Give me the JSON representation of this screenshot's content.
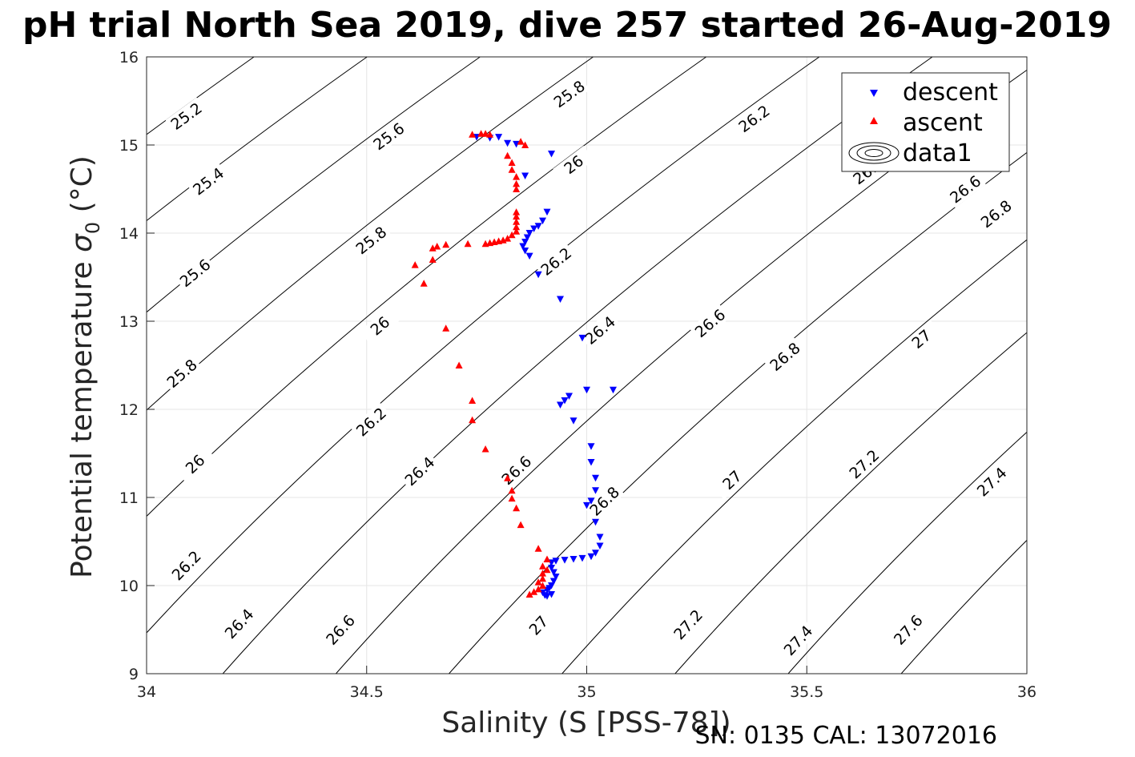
{
  "chart_data": {
    "type": "scatter",
    "title": "pH trial North Sea 2019, dive 257 started 26-Aug-2019",
    "xlabel": "Salinity (S [PSS-78])",
    "ylabel": "Potential temperature σ₀ (°C)",
    "ylabel_main": "Potential temperature ",
    "ylabel_sigma": "σ",
    "ylabel_sub": "0",
    "ylabel_unit": " (°C)",
    "xlim": [
      34,
      36
    ],
    "ylim": [
      9,
      16
    ],
    "xticks": [
      "34",
      "34.5",
      "35",
      "35.5",
      "36"
    ],
    "yticks": [
      "9",
      "10",
      "11",
      "12",
      "13",
      "14",
      "15",
      "16"
    ],
    "grid": true,
    "legend_position": "top-right",
    "legend": [
      "descent",
      "ascent",
      "data1"
    ],
    "footer": "SN: 0135  CAL: 13072016",
    "contour_levels": [
      "25.2",
      "25.4",
      "25.6",
      "25.8",
      "26",
      "26.2",
      "26.4",
      "26.6",
      "26.8",
      "27",
      "27.2",
      "27.4",
      "27.6"
    ],
    "contour_labels": [
      {
        "text": "25.2",
        "x": 34.09,
        "y": 15.33
      },
      {
        "text": "25.4",
        "x": 34.14,
        "y": 14.59
      },
      {
        "text": "25.6",
        "x": 34.11,
        "y": 13.55
      },
      {
        "text": "25.8",
        "x": 34.08,
        "y": 12.41
      },
      {
        "text": "26",
        "x": 34.11,
        "y": 11.38
      },
      {
        "text": "26.2",
        "x": 34.09,
        "y": 10.23
      },
      {
        "text": "26.4",
        "x": 34.21,
        "y": 9.57
      },
      {
        "text": "26.6",
        "x": 34.44,
        "y": 9.5
      },
      {
        "text": "25.6",
        "x": 34.55,
        "y": 15.1
      },
      {
        "text": "25.8",
        "x": 34.51,
        "y": 13.92
      },
      {
        "text": "26",
        "x": 34.53,
        "y": 12.95
      },
      {
        "text": "26.2",
        "x": 34.51,
        "y": 11.86
      },
      {
        "text": "26.4",
        "x": 34.62,
        "y": 11.3
      },
      {
        "text": "26.6",
        "x": 34.84,
        "y": 11.31
      },
      {
        "text": "27",
        "x": 34.89,
        "y": 9.55
      },
      {
        "text": "25.8",
        "x": 34.96,
        "y": 15.58
      },
      {
        "text": "26",
        "x": 34.97,
        "y": 14.78
      },
      {
        "text": "26.2",
        "x": 34.93,
        "y": 13.68
      },
      {
        "text": "26.4",
        "x": 35.03,
        "y": 12.9
      },
      {
        "text": "26.8",
        "x": 35.04,
        "y": 10.96
      },
      {
        "text": "26.2",
        "x": 35.38,
        "y": 15.3
      },
      {
        "text": "26.6",
        "x": 35.28,
        "y": 12.98
      },
      {
        "text": "26.8",
        "x": 35.45,
        "y": 12.6
      },
      {
        "text": "27",
        "x": 35.33,
        "y": 11.2
      },
      {
        "text": "27.2",
        "x": 35.23,
        "y": 9.56
      },
      {
        "text": "26.4",
        "x": 35.64,
        "y": 14.71
      },
      {
        "text": "27",
        "x": 35.76,
        "y": 12.8
      },
      {
        "text": "27.2",
        "x": 35.63,
        "y": 11.38
      },
      {
        "text": "27.4",
        "x": 35.48,
        "y": 9.38
      },
      {
        "text": "26.6",
        "x": 35.86,
        "y": 14.5
      },
      {
        "text": "26.8",
        "x": 35.93,
        "y": 14.22
      },
      {
        "text": "27.4",
        "x": 35.92,
        "y": 11.18
      },
      {
        "text": "27.6",
        "x": 35.73,
        "y": 9.5
      }
    ],
    "series": [
      {
        "name": "descent",
        "marker": "triangle-down",
        "color": "#0000ff",
        "points": [
          [
            34.75,
            15.09
          ],
          [
            34.78,
            15.08
          ],
          [
            34.8,
            15.09
          ],
          [
            34.82,
            15.02
          ],
          [
            34.84,
            15.01
          ],
          [
            34.92,
            14.9
          ],
          [
            34.86,
            14.65
          ],
          [
            34.91,
            14.24
          ],
          [
            34.9,
            14.14
          ],
          [
            34.89,
            14.08
          ],
          [
            34.88,
            14.05
          ],
          [
            34.87,
            14.0
          ],
          [
            34.865,
            13.95
          ],
          [
            34.86,
            13.9
          ],
          [
            34.855,
            13.85
          ],
          [
            34.86,
            13.8
          ],
          [
            34.87,
            13.74
          ],
          [
            34.89,
            13.53
          ],
          [
            34.94,
            13.25
          ],
          [
            34.99,
            12.81
          ],
          [
            35.06,
            12.22
          ],
          [
            35.0,
            12.22
          ],
          [
            34.96,
            12.15
          ],
          [
            34.95,
            12.1
          ],
          [
            34.94,
            12.05
          ],
          [
            34.97,
            11.87
          ],
          [
            35.01,
            11.58
          ],
          [
            35.01,
            11.4
          ],
          [
            35.02,
            11.22
          ],
          [
            35.02,
            11.08
          ],
          [
            35.01,
            10.96
          ],
          [
            35.0,
            10.91
          ],
          [
            35.02,
            10.72
          ],
          [
            35.03,
            10.55
          ],
          [
            35.03,
            10.45
          ],
          [
            35.02,
            10.37
          ],
          [
            35.01,
            10.33
          ],
          [
            34.99,
            10.31
          ],
          [
            34.97,
            10.3
          ],
          [
            34.95,
            10.29
          ],
          [
            34.93,
            10.28
          ],
          [
            34.92,
            10.26
          ],
          [
            34.92,
            10.2
          ],
          [
            34.925,
            10.15
          ],
          [
            34.93,
            10.1
          ],
          [
            34.925,
            10.05
          ],
          [
            34.92,
            10.0
          ],
          [
            34.915,
            9.97
          ],
          [
            34.91,
            9.95
          ],
          [
            34.9,
            9.92
          ],
          [
            34.905,
            9.89
          ],
          [
            34.91,
            9.88
          ],
          [
            34.92,
            9.9
          ]
        ]
      },
      {
        "name": "ascent",
        "marker": "triangle-up",
        "color": "#ff0000",
        "points": [
          [
            34.74,
            15.12
          ],
          [
            34.76,
            15.13
          ],
          [
            34.77,
            15.13
          ],
          [
            34.78,
            15.12
          ],
          [
            34.85,
            15.04
          ],
          [
            34.86,
            15.0
          ],
          [
            34.82,
            14.88
          ],
          [
            34.83,
            14.8
          ],
          [
            34.83,
            14.72
          ],
          [
            34.84,
            14.64
          ],
          [
            34.84,
            14.56
          ],
          [
            34.84,
            14.5
          ],
          [
            34.84,
            14.24
          ],
          [
            34.84,
            14.19
          ],
          [
            34.84,
            14.13
          ],
          [
            34.84,
            14.07
          ],
          [
            34.84,
            14.02
          ],
          [
            34.83,
            13.98
          ],
          [
            34.82,
            13.94
          ],
          [
            34.81,
            13.92
          ],
          [
            34.8,
            13.91
          ],
          [
            34.79,
            13.9
          ],
          [
            34.78,
            13.89
          ],
          [
            34.77,
            13.88
          ],
          [
            34.73,
            13.88
          ],
          [
            34.68,
            13.87
          ],
          [
            34.66,
            13.85
          ],
          [
            34.65,
            13.83
          ],
          [
            34.65,
            13.7
          ],
          [
            34.61,
            13.64
          ],
          [
            34.63,
            13.43
          ],
          [
            34.68,
            12.92
          ],
          [
            34.71,
            12.5
          ],
          [
            34.74,
            12.1
          ],
          [
            34.74,
            11.88
          ],
          [
            34.77,
            11.55
          ],
          [
            34.82,
            11.22
          ],
          [
            34.83,
            11.08
          ],
          [
            34.83,
            10.99
          ],
          [
            34.84,
            10.88
          ],
          [
            34.85,
            10.69
          ],
          [
            34.89,
            10.42
          ],
          [
            34.91,
            10.3
          ],
          [
            34.9,
            10.22
          ],
          [
            34.91,
            10.18
          ],
          [
            34.9,
            10.14
          ],
          [
            34.9,
            10.08
          ],
          [
            34.89,
            10.04
          ],
          [
            34.9,
            10.0
          ],
          [
            34.89,
            9.96
          ],
          [
            34.88,
            9.93
          ],
          [
            34.87,
            9.9
          ]
        ]
      }
    ]
  }
}
